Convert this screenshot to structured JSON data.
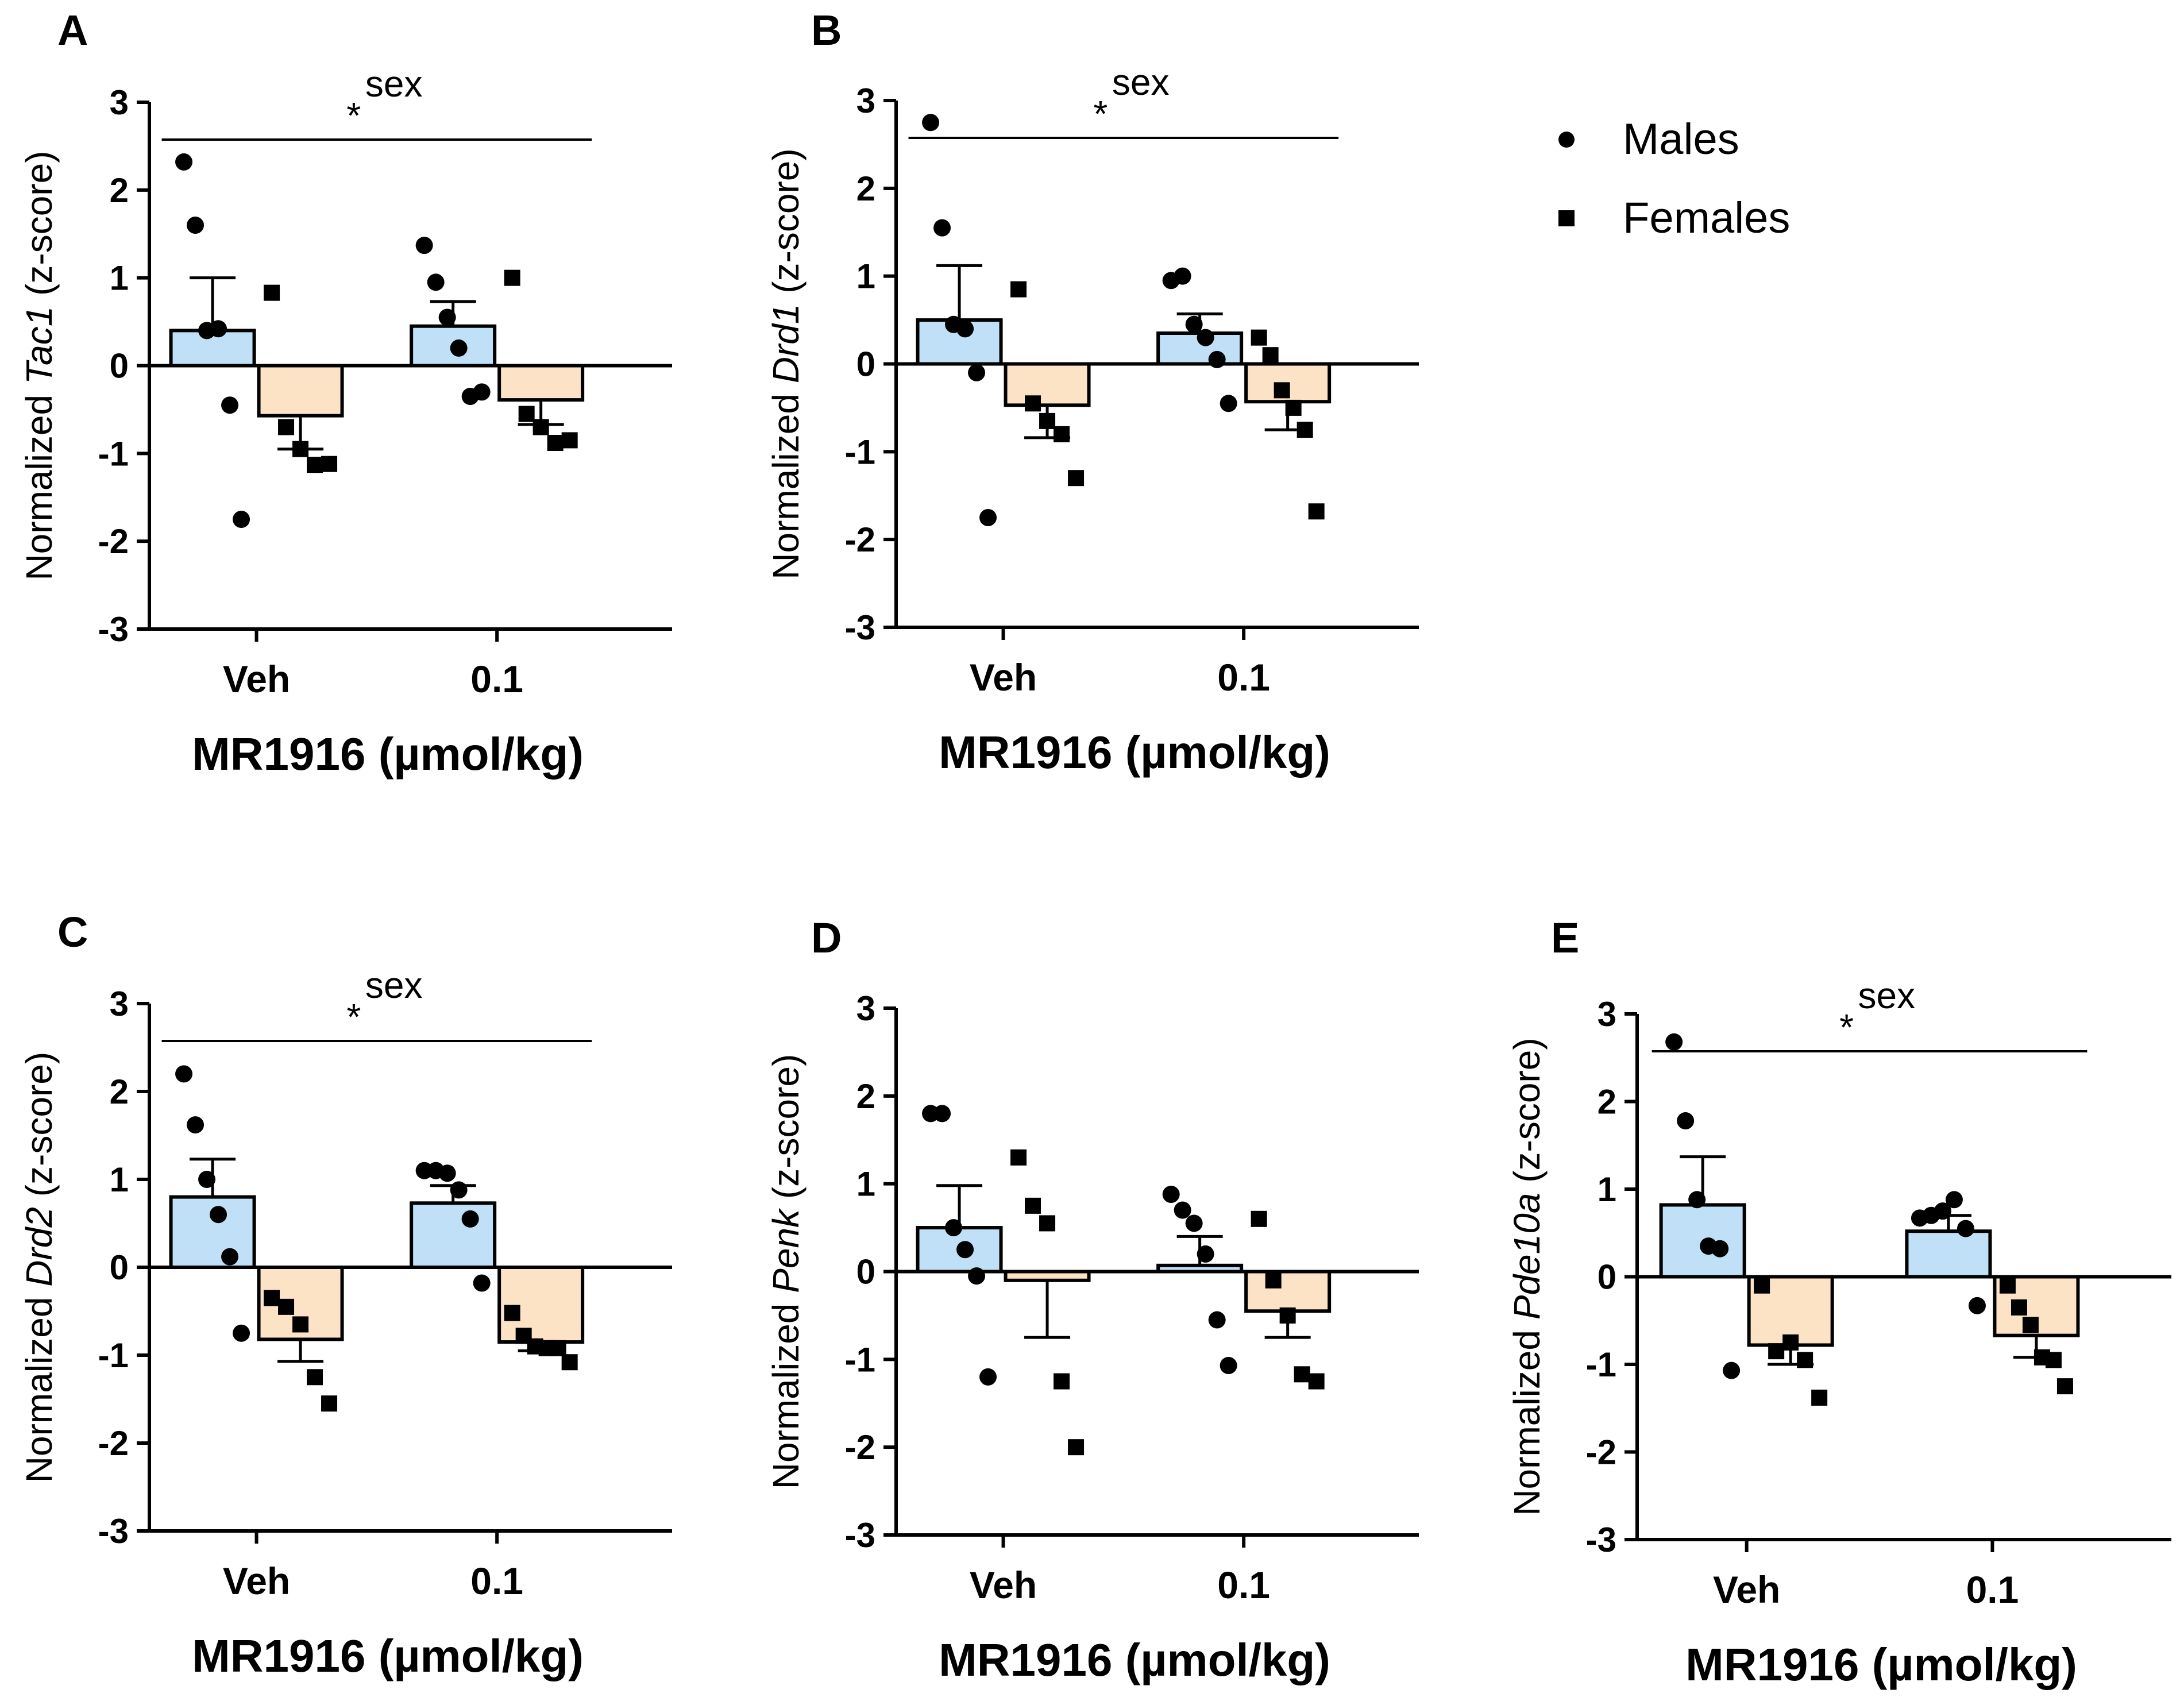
{
  "legend": [
    {
      "label": "Males",
      "marker": "circle"
    },
    {
      "label": "Females",
      "marker": "square"
    }
  ],
  "colors": {
    "males_bar": "#bfe0f7",
    "females_bar": "#fde3c6",
    "ink": "#000000"
  },
  "chart_data": [
    {
      "type": "bar",
      "panel": "A",
      "gene": "Tac1",
      "ylabel_prefix": "Normalized ",
      "ylabel_suffix": " (z-score)",
      "xlabel": "MR1916 (µmol/kg)",
      "categories": [
        "Veh",
        "0.1"
      ],
      "ylim": [
        -3,
        3
      ],
      "yticks": [
        3,
        2,
        1,
        0,
        -1,
        -2,
        -3
      ],
      "significance": {
        "star": "*",
        "label": "sex"
      },
      "series": [
        {
          "name": "Males",
          "means": [
            0.4,
            0.45
          ],
          "sem": [
            0.6,
            0.28
          ],
          "points": [
            [
              2.32,
              1.6,
              0.4,
              0.42,
              -0.45,
              -1.75
            ],
            [
              1.37,
              0.95,
              0.55,
              0.2,
              -0.35,
              -0.3
            ]
          ]
        },
        {
          "name": "Females",
          "means": [
            -0.57,
            -0.39
          ],
          "sem": [
            0.38,
            0.28
          ],
          "points": [
            [
              0.83,
              -0.7,
              -0.95,
              -1.13,
              -1.12
            ],
            [
              1.0,
              -0.55,
              -0.7,
              -0.88,
              -0.85
            ]
          ]
        }
      ]
    },
    {
      "type": "bar",
      "panel": "B",
      "gene": "Drd1",
      "ylabel_prefix": "Normalized ",
      "ylabel_suffix": " (z-score)",
      "xlabel": "MR1916 (µmol/kg)",
      "categories": [
        "Veh",
        "0.1"
      ],
      "ylim": [
        -3,
        3
      ],
      "yticks": [
        3,
        2,
        1,
        0,
        -1,
        -2,
        -3
      ],
      "significance": {
        "star": "*",
        "label": "sex"
      },
      "series": [
        {
          "name": "Males",
          "means": [
            0.5,
            0.35
          ],
          "sem": [
            0.62,
            0.22
          ],
          "points": [
            [
              2.75,
              1.55,
              0.45,
              0.4,
              -0.1,
              -1.75
            ],
            [
              0.95,
              1.0,
              0.45,
              0.3,
              0.05,
              -0.45
            ]
          ]
        },
        {
          "name": "Females",
          "means": [
            -0.47,
            -0.43
          ],
          "sem": [
            0.37,
            0.32
          ],
          "points": [
            [
              0.85,
              -0.45,
              -0.65,
              -0.8,
              -1.3
            ],
            [
              0.3,
              0.1,
              -0.3,
              -0.5,
              -0.75,
              -1.68
            ]
          ]
        }
      ]
    },
    {
      "type": "bar",
      "panel": "C",
      "gene": "Drd2",
      "ylabel_prefix": "Normalized ",
      "ylabel_suffix": " (z-score)",
      "xlabel": "MR1916 (µmol/kg)",
      "categories": [
        "Veh",
        "0.1"
      ],
      "ylim": [
        -3,
        3
      ],
      "yticks": [
        3,
        2,
        1,
        0,
        -1,
        -2,
        -3
      ],
      "significance": {
        "star": "*",
        "label": "sex"
      },
      "series": [
        {
          "name": "Males",
          "means": [
            0.8,
            0.73
          ],
          "sem": [
            0.43,
            0.2
          ],
          "points": [
            [
              2.2,
              1.62,
              1.0,
              0.6,
              0.12,
              -0.75
            ],
            [
              1.1,
              1.1,
              1.07,
              0.88,
              0.55,
              -0.18
            ]
          ]
        },
        {
          "name": "Females",
          "means": [
            -0.82,
            -0.85
          ],
          "sem": [
            0.25,
            0.1
          ],
          "points": [
            [
              -0.35,
              -0.45,
              -0.65,
              -1.25,
              -1.55
            ],
            [
              -0.52,
              -0.78,
              -0.9,
              -0.92,
              -0.92,
              -1.08
            ]
          ]
        }
      ]
    },
    {
      "type": "bar",
      "panel": "D",
      "gene": "Penk",
      "ylabel_prefix": "Normalized ",
      "ylabel_suffix": " (z-score)",
      "xlabel": "MR1916 (µmol/kg)",
      "categories": [
        "Veh",
        "0.1"
      ],
      "ylim": [
        -3,
        3
      ],
      "yticks": [
        3,
        2,
        1,
        0,
        -1,
        -2,
        -3
      ],
      "significance": null,
      "series": [
        {
          "name": "Males",
          "means": [
            0.5,
            0.07
          ],
          "sem": [
            0.48,
            0.33
          ],
          "points": [
            [
              1.8,
              1.8,
              0.5,
              0.25,
              -0.05,
              -1.2
            ],
            [
              0.88,
              0.7,
              0.55,
              0.2,
              -0.55,
              -1.07
            ]
          ]
        },
        {
          "name": "Females",
          "means": [
            -0.1,
            -0.45
          ],
          "sem": [
            0.65,
            0.3
          ],
          "points": [
            [
              1.3,
              0.75,
              0.55,
              -1.25,
              -2.0
            ],
            [
              0.6,
              -0.1,
              -0.5,
              -1.17,
              -1.25
            ]
          ]
        }
      ]
    },
    {
      "type": "bar",
      "panel": "E",
      "gene": "Pde10a",
      "ylabel_prefix": "Normalized ",
      "ylabel_suffix": " (z-score)",
      "xlabel": "MR1916 (µmol/kg)",
      "categories": [
        "Veh",
        "0.1"
      ],
      "ylim": [
        -3,
        3
      ],
      "yticks": [
        3,
        2,
        1,
        0,
        -1,
        -2,
        -3
      ],
      "significance": {
        "star": "*",
        "label": "sex"
      },
      "series": [
        {
          "name": "Males",
          "means": [
            0.82,
            0.52
          ],
          "sem": [
            0.55,
            0.18
          ],
          "points": [
            [
              2.68,
              1.78,
              0.88,
              0.35,
              0.32,
              -1.07
            ],
            [
              0.67,
              0.7,
              0.75,
              0.88,
              0.55,
              -0.33
            ]
          ]
        },
        {
          "name": "Females",
          "means": [
            -0.78,
            -0.67
          ],
          "sem": [
            0.22,
            0.25
          ],
          "points": [
            [
              -0.1,
              -0.85,
              -0.75,
              -0.95,
              -1.38
            ],
            [
              -0.1,
              -0.35,
              -0.55,
              -0.92,
              -0.95,
              -1.25
            ]
          ]
        }
      ]
    }
  ]
}
